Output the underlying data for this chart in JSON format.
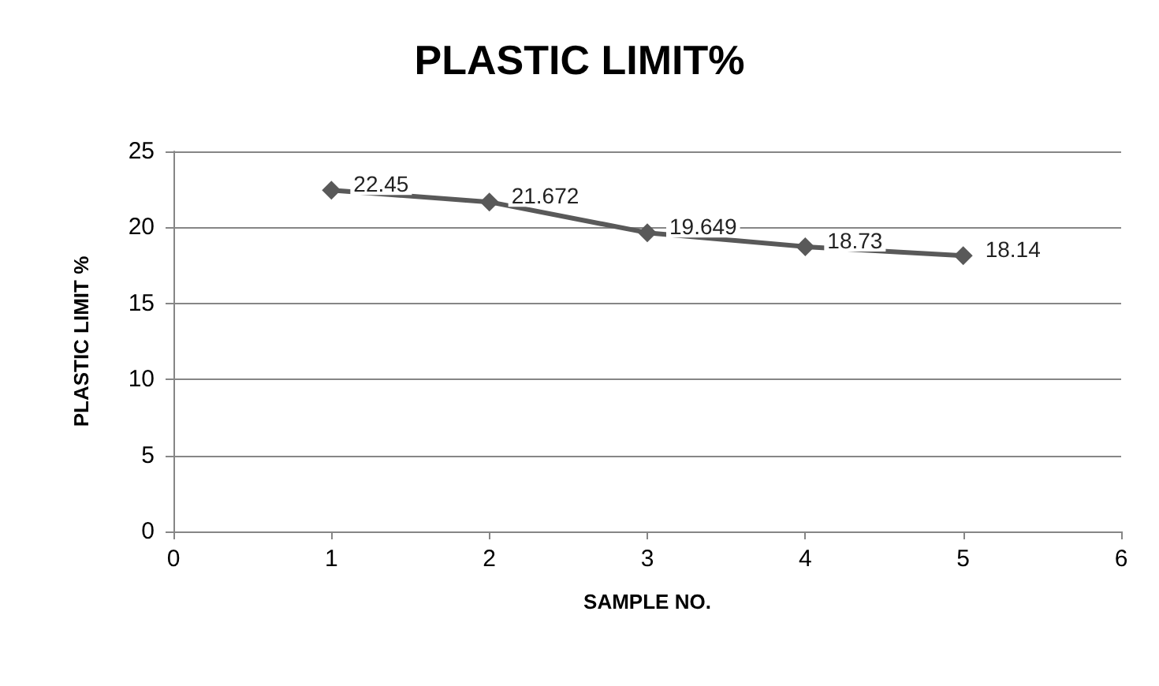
{
  "chart_data": {
    "type": "line",
    "title": "PLASTIC LIMIT%",
    "xlabel": "SAMPLE NO.",
    "ylabel": "PLASTIC LIMIT %",
    "x": [
      1,
      2,
      3,
      4,
      5
    ],
    "series": [
      {
        "color": "#595959",
        "values": [
          22.45,
          21.672,
          19.649,
          18.73,
          18.14
        ]
      }
    ],
    "xlim": [
      0,
      6
    ],
    "xticks": [
      0,
      1,
      2,
      3,
      4,
      5,
      6
    ],
    "ylim": [
      0,
      25
    ],
    "yticks": [
      0,
      5,
      10,
      15,
      20,
      25
    ],
    "grid": "y",
    "marker": "diamond",
    "line_style": "solid",
    "data_labels": true
  }
}
